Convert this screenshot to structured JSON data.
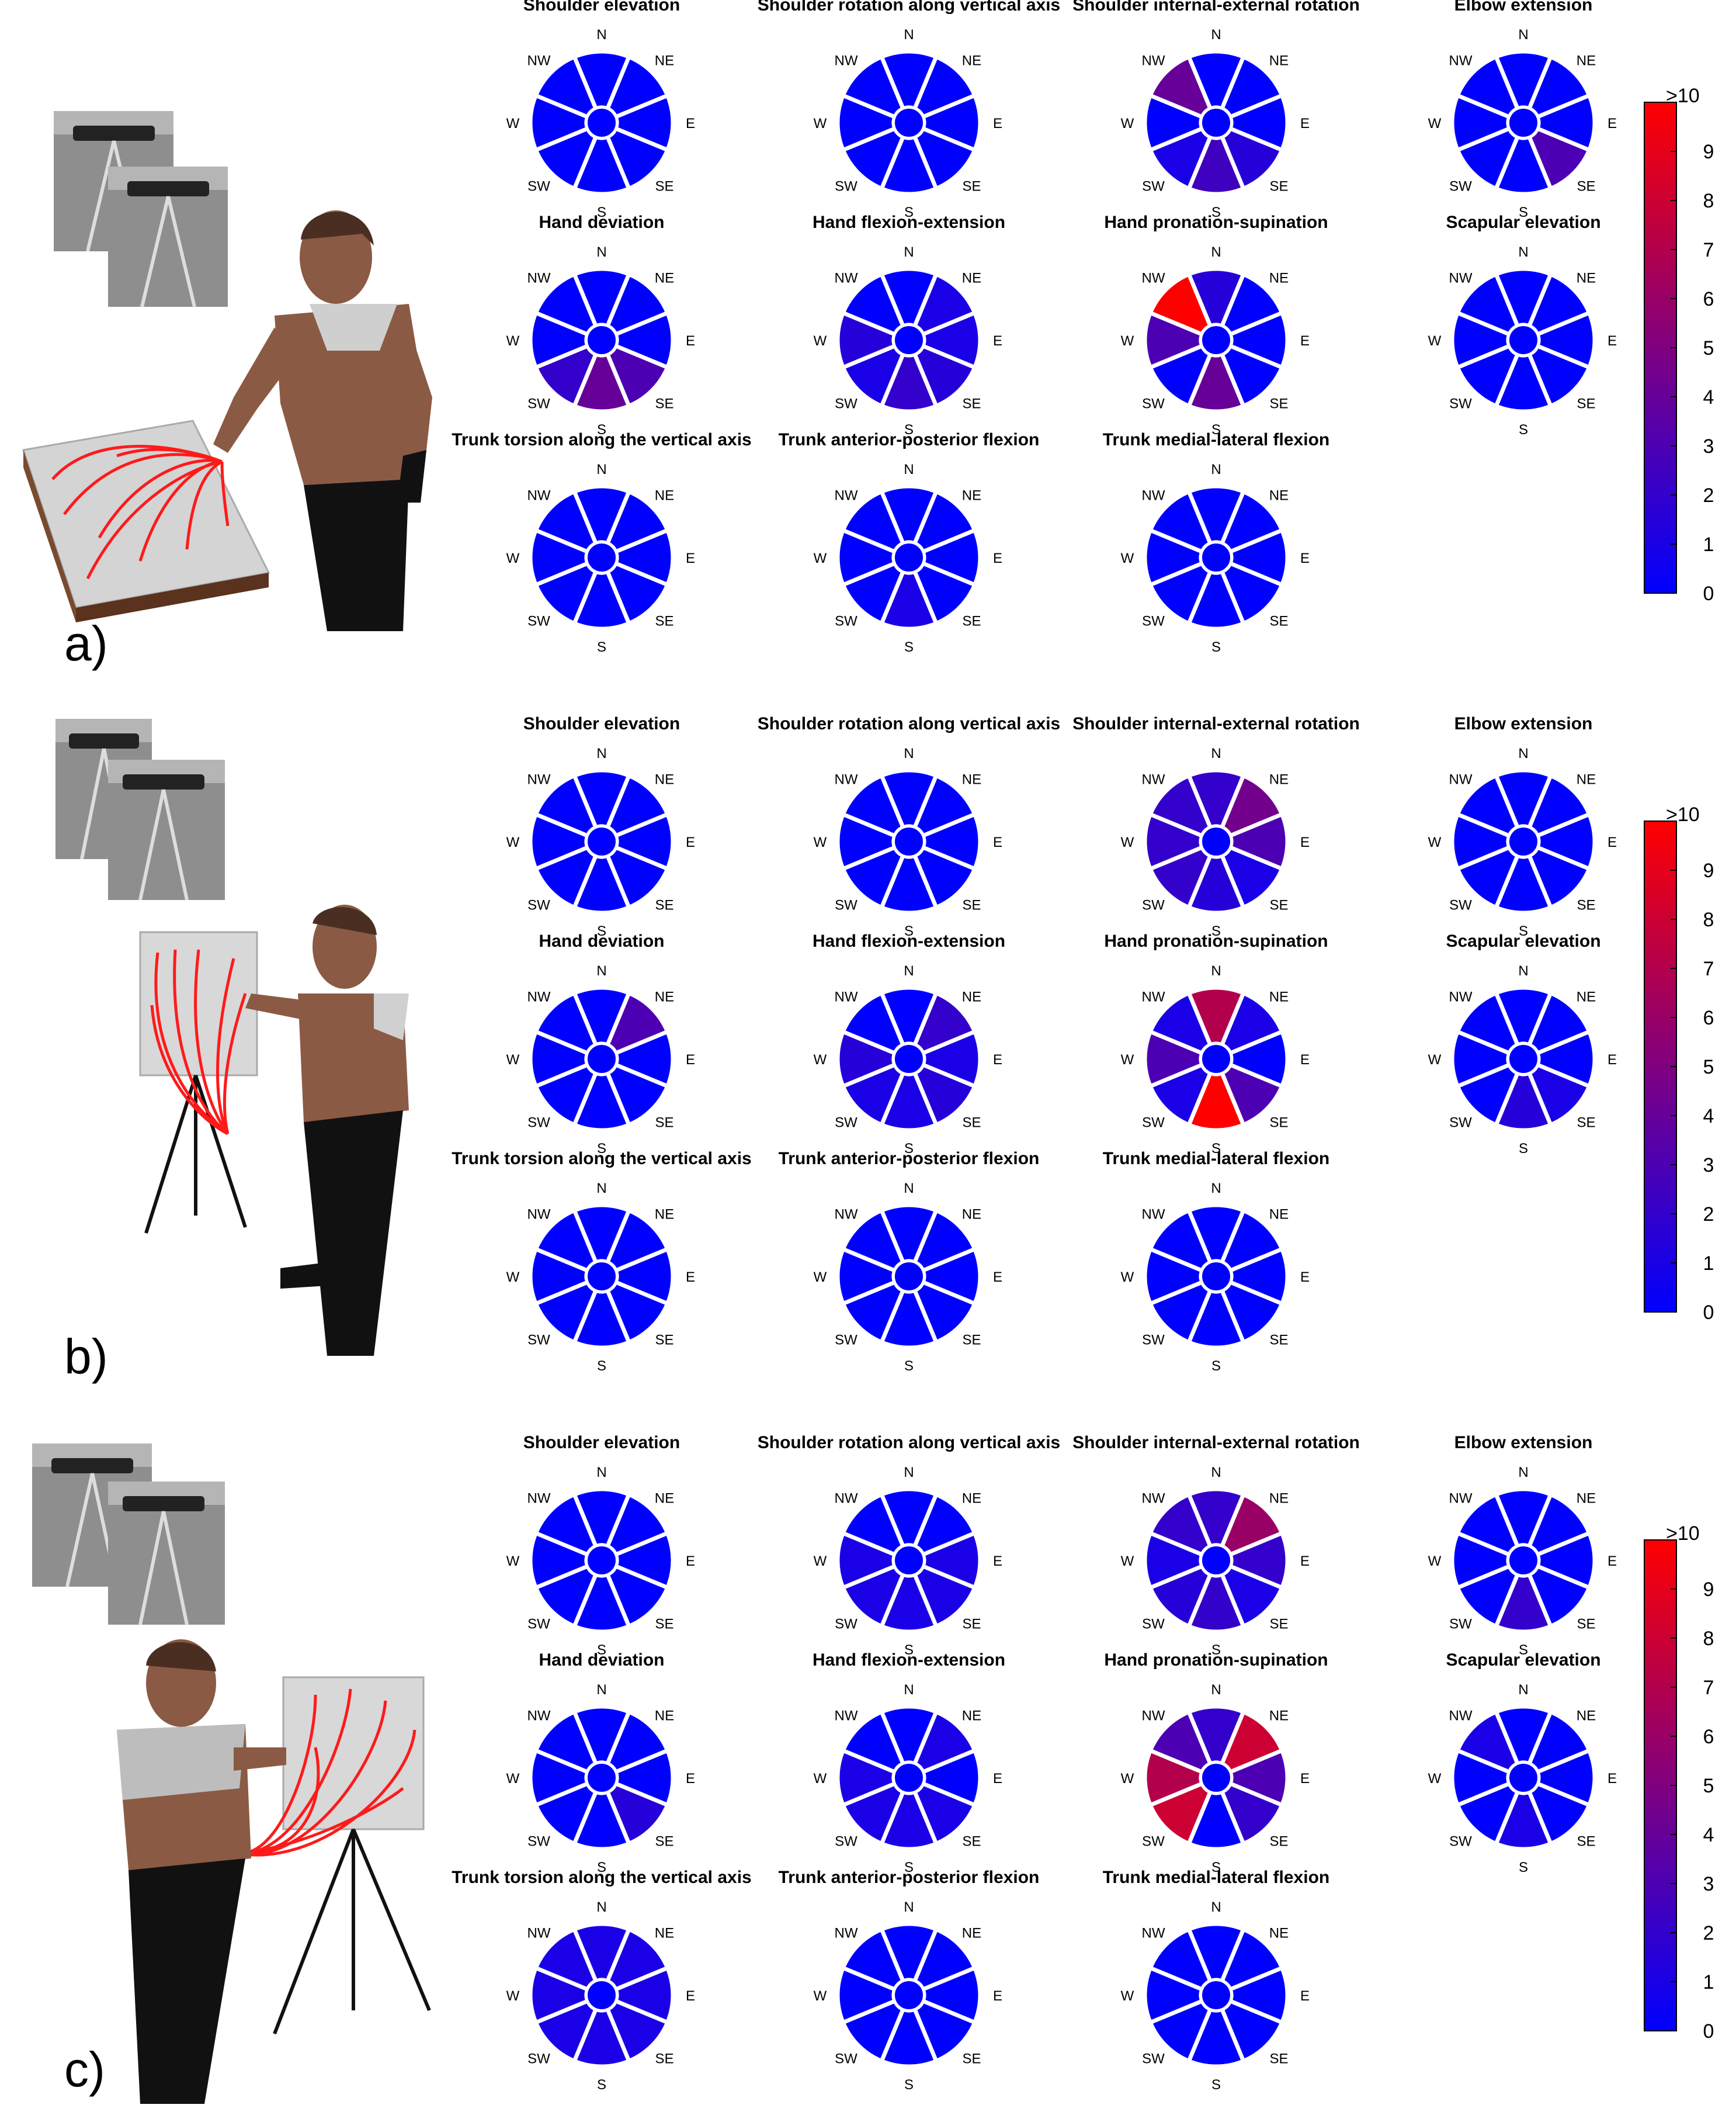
{
  "directions": [
    "N",
    "NE",
    "E",
    "SE",
    "S",
    "SW",
    "W",
    "NW"
  ],
  "colorbar": {
    "ticks": [
      "0",
      "1",
      "2",
      "3",
      "4",
      "5",
      "6",
      "7",
      "8",
      "9",
      ">10"
    ],
    "min": 0,
    "max": 10,
    "colors": {
      "low": "#0000ff",
      "high": "#ff0000"
    }
  },
  "chart_data": [
    {
      "type": "polar-sector-heatmap",
      "panel": "a)",
      "plots": [
        {
          "title": "Shoulder elevation",
          "values": [
            0,
            0,
            0,
            0,
            0,
            0,
            0,
            0
          ]
        },
        {
          "title": "Shoulder rotation along vertical axis",
          "values": [
            0,
            0,
            0,
            0,
            0,
            0,
            0,
            0
          ]
        },
        {
          "title": "Shoulder internal-external rotation",
          "values": [
            0,
            0,
            0,
            1.5,
            2.5,
            1,
            0,
            4
          ]
        },
        {
          "title": "Elbow extension",
          "values": [
            0,
            0,
            0,
            3,
            0,
            0,
            0,
            0
          ]
        },
        {
          "title": "Hand deviation",
          "values": [
            0,
            0,
            0,
            3,
            4,
            2,
            0,
            0
          ]
        },
        {
          "title": "Hand flexion-extension",
          "values": [
            0,
            1,
            1,
            1.5,
            2,
            1,
            1.5,
            0
          ]
        },
        {
          "title": "Hand pronation-supination",
          "values": [
            1.5,
            0,
            0,
            0,
            4,
            0,
            3,
            10
          ]
        },
        {
          "title": "Scapular elevation",
          "values": [
            0,
            0,
            0,
            0,
            0,
            0,
            0,
            0
          ]
        },
        {
          "title": "Trunk torsion along the vertical axis",
          "values": [
            0,
            0,
            0,
            0,
            0,
            0,
            0,
            0
          ]
        },
        {
          "title": "Trunk anterior-posterior flexion",
          "values": [
            0,
            0,
            0,
            0,
            1,
            0,
            0,
            0
          ]
        },
        {
          "title": "Trunk medial-lateral flexion",
          "values": [
            0,
            0,
            0,
            0,
            0,
            0,
            0,
            0
          ]
        }
      ]
    },
    {
      "type": "polar-sector-heatmap",
      "panel": "b)",
      "plots": [
        {
          "title": "Shoulder elevation",
          "values": [
            0,
            0,
            0,
            0,
            0,
            0,
            0,
            0
          ]
        },
        {
          "title": "Shoulder rotation along vertical axis",
          "values": [
            0,
            0,
            0,
            0,
            0,
            0,
            0,
            0
          ]
        },
        {
          "title": "Shoulder internal-external rotation",
          "values": [
            2,
            4.5,
            3,
            1,
            1.5,
            2,
            2,
            2
          ]
        },
        {
          "title": "Elbow extension",
          "values": [
            0,
            0,
            0,
            0,
            0,
            0,
            0,
            0
          ]
        },
        {
          "title": "Hand deviation",
          "values": [
            0,
            3,
            0,
            0,
            0,
            0,
            0,
            0
          ]
        },
        {
          "title": "Hand flexion-extension",
          "values": [
            0,
            2,
            1,
            1.5,
            1,
            1,
            1.5,
            0
          ]
        },
        {
          "title": "Hand pronation-supination",
          "values": [
            7,
            1,
            0,
            3,
            10,
            1,
            3,
            1
          ]
        },
        {
          "title": "Scapular elevation",
          "values": [
            0,
            0,
            0,
            1,
            1.5,
            0,
            0,
            0
          ]
        },
        {
          "title": "Trunk torsion along the vertical axis",
          "values": [
            0,
            0,
            0,
            0,
            0,
            0,
            0,
            0
          ]
        },
        {
          "title": "Trunk anterior-posterior flexion",
          "values": [
            0,
            0,
            0,
            0,
            0,
            0,
            0,
            0
          ]
        },
        {
          "title": "Trunk medial-lateral flexion",
          "values": [
            0,
            0,
            0,
            0,
            0,
            0,
            0,
            0
          ]
        }
      ]
    },
    {
      "type": "polar-sector-heatmap",
      "panel": "c)",
      "plots": [
        {
          "title": "Shoulder elevation",
          "values": [
            0,
            0,
            0,
            0,
            0,
            0,
            0,
            0
          ]
        },
        {
          "title": "Shoulder rotation along vertical axis",
          "values": [
            0,
            0,
            1,
            1,
            1,
            1,
            1,
            0
          ]
        },
        {
          "title": "Shoulder internal-external rotation",
          "values": [
            2,
            6,
            2,
            1,
            2,
            1.5,
            1,
            2
          ]
        },
        {
          "title": "Elbow extension",
          "values": [
            0,
            0,
            0,
            0,
            2,
            0,
            0,
            0
          ]
        },
        {
          "title": "Hand deviation",
          "values": [
            0,
            0,
            0,
            1.5,
            0,
            0,
            0,
            0
          ]
        },
        {
          "title": "Hand flexion-extension",
          "values": [
            0,
            1,
            0,
            1,
            1,
            1,
            1,
            0
          ]
        },
        {
          "title": "Hand pronation-supination",
          "values": [
            2,
            8,
            3,
            2,
            0,
            8,
            7,
            3
          ]
        },
        {
          "title": "Scapular elevation",
          "values": [
            0,
            0,
            0,
            0,
            1,
            0,
            0,
            1
          ]
        },
        {
          "title": "Trunk torsion along the vertical axis",
          "values": [
            1,
            1,
            1,
            1,
            1,
            1,
            1,
            1
          ]
        },
        {
          "title": "Trunk anterior-posterior flexion",
          "values": [
            0,
            0,
            0,
            0,
            0,
            0,
            0,
            0
          ]
        },
        {
          "title": "Trunk medial-lateral flexion",
          "values": [
            0,
            0,
            0,
            0,
            0,
            0,
            0,
            0
          ]
        }
      ]
    }
  ]
}
